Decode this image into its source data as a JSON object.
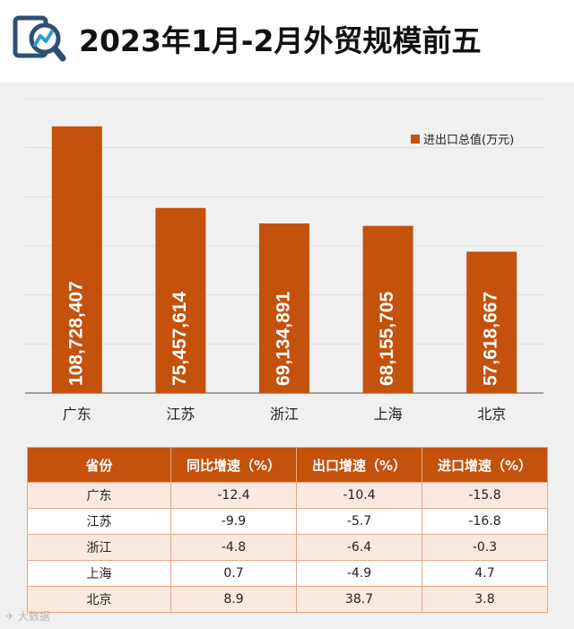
{
  "header": {
    "title": "2023年1月-2月外贸规模前五",
    "logo_icon": "magnifier-chart-icon"
  },
  "chart_data": {
    "type": "bar",
    "categories": [
      "广东",
      "江苏",
      "浙江",
      "上海",
      "北京"
    ],
    "series": [
      {
        "name": "进出口总值(万元)",
        "values": [
          108728407,
          75457614,
          69134891,
          68155705,
          57618667
        ],
        "labels": [
          "108,728,407",
          "75,457,614",
          "69,134,891",
          "68,155,705",
          "57,618,667"
        ]
      }
    ],
    "ylim": [
      0,
      120000000
    ],
    "grid": true,
    "legend_position": "top-right",
    "value_labels": "inside-bar-vertical",
    "colors": {
      "bar": "#c4510c",
      "grid": "#dcdcdc",
      "axis": "#555555"
    }
  },
  "table": {
    "headers": [
      "省份",
      "同比增速（%）",
      "出口增速（%）",
      "进口增速（%）"
    ],
    "rows": [
      [
        "广东",
        "-12.4",
        "-10.4",
        "-15.8"
      ],
      [
        "江苏",
        "-9.9",
        "-5.7",
        "-16.8"
      ],
      [
        "浙江",
        "-4.8",
        "-6.4",
        "-0.3"
      ],
      [
        "上海",
        "0.7",
        "-4.9",
        "4.7"
      ],
      [
        "北京",
        "8.9",
        "38.7",
        "3.8"
      ]
    ],
    "colors": {
      "header": "#c4510c",
      "row_tint": "#fbe9df"
    }
  },
  "watermark": {
    "text": "大数据"
  }
}
